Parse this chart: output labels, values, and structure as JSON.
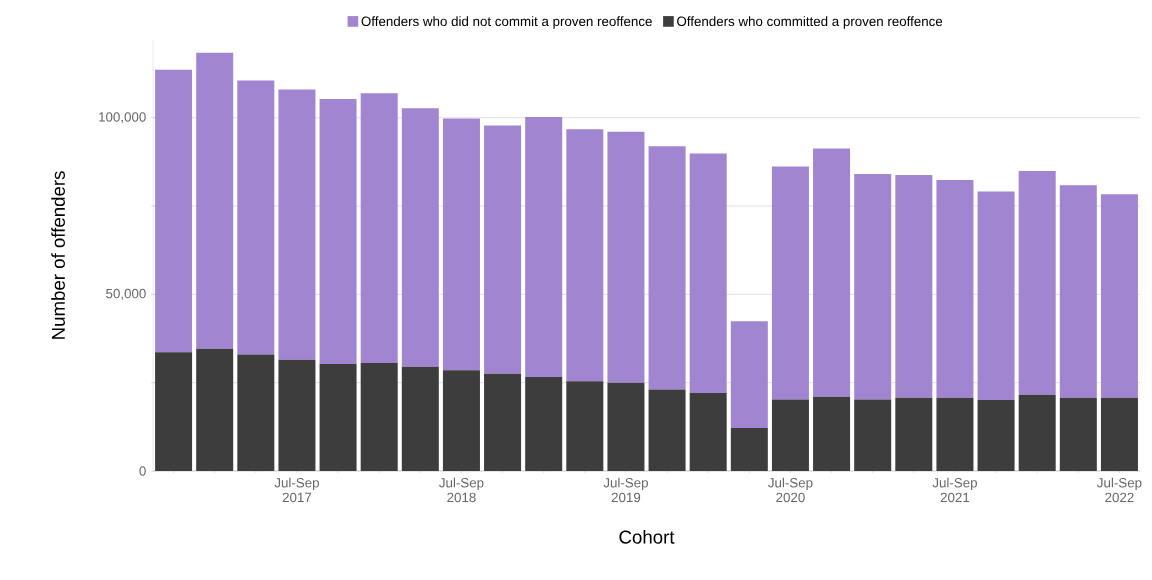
{
  "chart_data": {
    "type": "bar",
    "stacked": true,
    "xlabel": "Cohort",
    "ylabel": "Number of offenders",
    "categories": [
      null,
      null,
      null,
      "Jul-Sep 2017",
      null,
      null,
      null,
      "Jul-Sep 2018",
      null,
      null,
      null,
      "Jul-Sep 2019",
      null,
      null,
      null,
      "Jul-Sep 2020",
      null,
      null,
      null,
      "Jul-Sep 2021",
      null,
      null,
      null,
      "Jul-Sep 2022"
    ],
    "series": [
      {
        "name": "Offenders who committed a proven reoffence",
        "color": "#3d3d3d",
        "values": [
          33600,
          34600,
          33000,
          31500,
          30300,
          30600,
          29500,
          28500,
          27500,
          26600,
          25400,
          25000,
          23100,
          22100,
          12200,
          20200,
          21000,
          20200,
          20700,
          20700,
          20100,
          21600,
          20700,
          20700
        ]
      },
      {
        "name": "Offenders who did not commit a proven reoffence",
        "color": "#a285d1",
        "values": [
          80000,
          83800,
          77500,
          76500,
          75000,
          76300,
          73200,
          71300,
          70300,
          73600,
          71300,
          71000,
          68800,
          67800,
          30200,
          66000,
          70300,
          63900,
          63100,
          61700,
          59000,
          63300,
          60200,
          57600
        ]
      }
    ],
    "yticks": [
      {
        "value": 0,
        "label": "0"
      },
      {
        "value": 25000,
        "label": null
      },
      {
        "value": 50000,
        "label": "50,000"
      },
      {
        "value": 75000,
        "label": null
      },
      {
        "value": 100000,
        "label": "100,000"
      }
    ],
    "ylim": [
      0,
      122000
    ],
    "grid": "y",
    "legend": "top"
  }
}
